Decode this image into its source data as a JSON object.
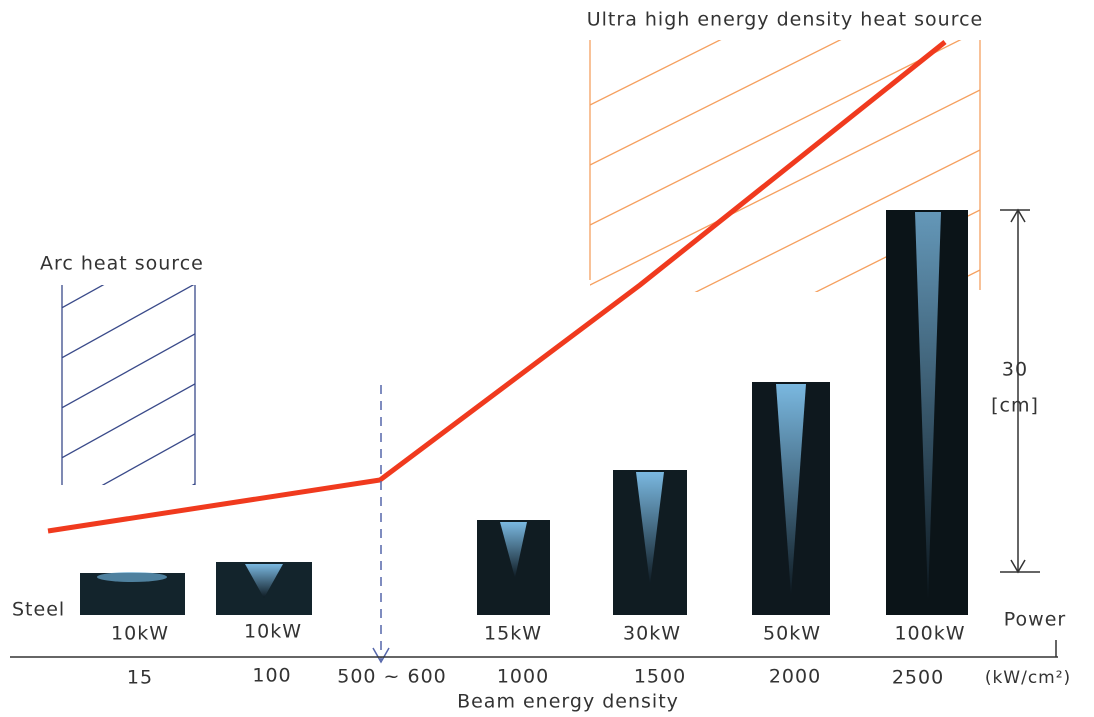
{
  "regions": {
    "arc": "Arc heat source",
    "ultra": "Ultra high energy density heat source"
  },
  "material_label": "Steel",
  "power_label": "Power",
  "samples": [
    {
      "power": "10kW"
    },
    {
      "power": "10kW"
    },
    {
      "power": "15kW"
    },
    {
      "power": "30kW"
    },
    {
      "power": "50kW"
    },
    {
      "power": "100kW"
    }
  ],
  "scale": {
    "value": "30",
    "unit": "[cm]"
  },
  "axis": {
    "title": "Beam energy density",
    "ticks": [
      "15",
      "100",
      "500 ~ 600",
      "1000",
      "1500",
      "2000",
      "2500"
    ],
    "unit": "(kW/cm²)"
  }
}
